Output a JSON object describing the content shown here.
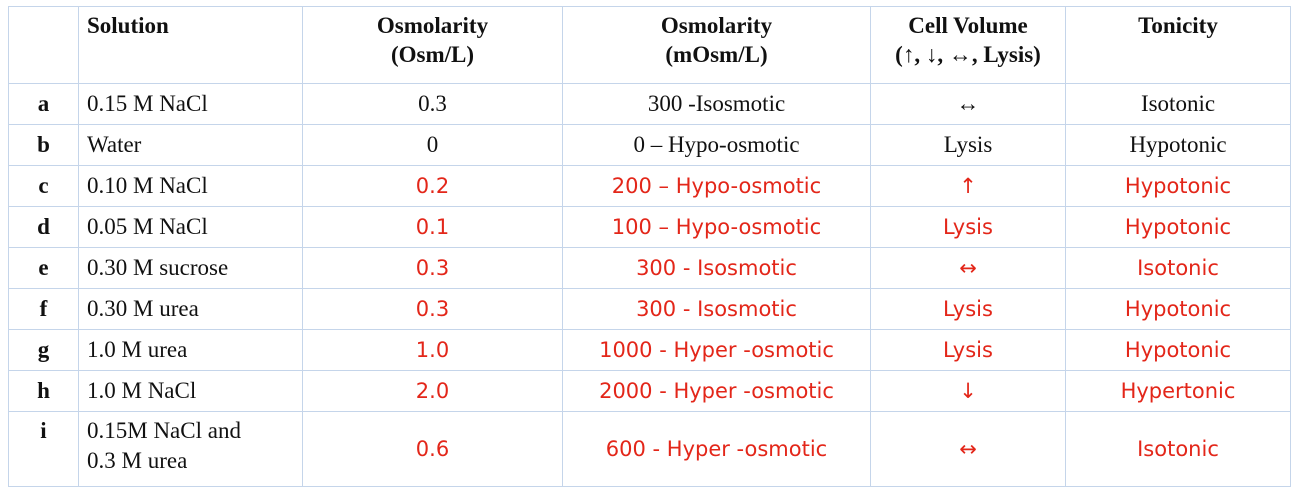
{
  "table": {
    "header": [
      "Solution",
      "Osmolarity\n(Osm/L)",
      "Osmolarity\n(mOsm/L)",
      "Cell Volume\n(↑, ↓, ↔,  Lysis)",
      "Tonicity"
    ],
    "rows": [
      [
        "a",
        "0.15 M NaCl",
        "0.3",
        "300 -Isosmotic",
        "↔",
        "Isotonic"
      ],
      [
        "b",
        "Water",
        "0",
        "0 – Hypo-osmotic",
        "Lysis",
        "Hypotonic"
      ],
      [
        "c",
        "0.10 M NaCl",
        "0.2",
        "200 – Hypo-osmotic",
        "↑",
        "Hypotonic"
      ],
      [
        "d",
        "0.05 M NaCl",
        "0.1",
        "100 – Hypo-osmotic",
        "Lysis",
        "Hypotonic"
      ],
      [
        "e",
        "0.30 M sucrose",
        "0.3",
        "300 -  Isosmotic",
        "↔",
        "Isotonic"
      ],
      [
        "f",
        "0.30 M urea",
        "0.3",
        "300 -  Isosmotic",
        "Lysis",
        "Hypotonic"
      ],
      [
        "g",
        "1.0 M urea",
        "1.0",
        "1000 -  Hyper -osmotic",
        "Lysis",
        "Hypotonic"
      ],
      [
        "h",
        "1.0 M NaCl",
        "2.0",
        "2000 -  Hyper -osmotic",
        "↓",
        "Hypertonic"
      ],
      [
        "i",
        "0.15M NaCl and\n0.3 M urea",
        "0.6",
        "600 -  Hyper -osmotic",
        "↔",
        "Isotonic"
      ]
    ]
  }
}
